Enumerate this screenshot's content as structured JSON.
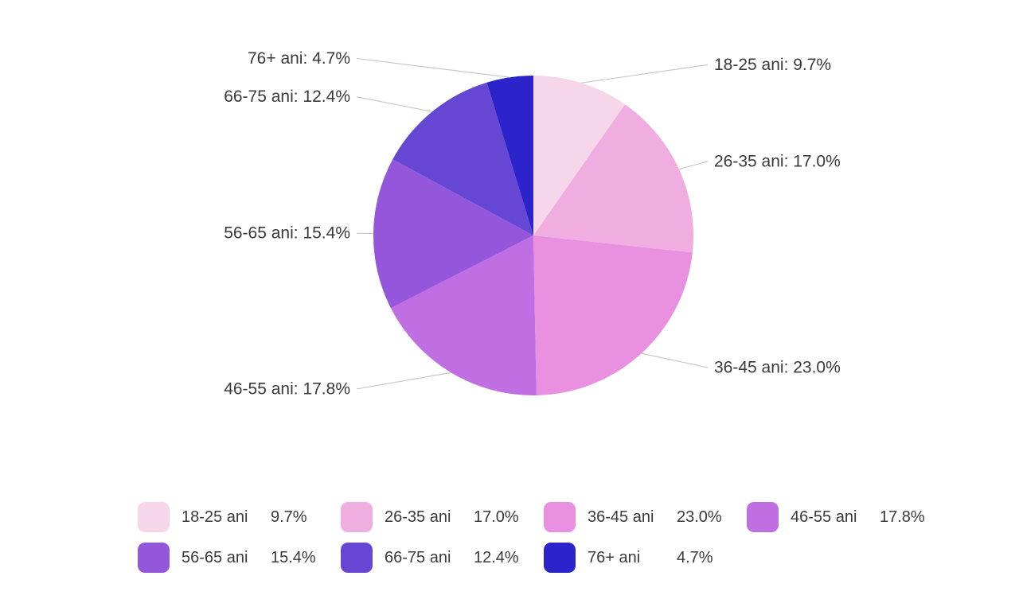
{
  "chart_data": {
    "type": "pie",
    "title": "",
    "labels": [
      "18-25 ani",
      "26-35 ani",
      "36-45 ani",
      "46-55 ani",
      "56-65 ani",
      "66-75 ani",
      "76+ ani"
    ],
    "values": [
      9.7,
      17.0,
      23.0,
      17.8,
      15.4,
      12.4,
      4.7
    ],
    "display_values": [
      "9.7%",
      "17.0%",
      "23.0%",
      "17.8%",
      "15.4%",
      "12.4%",
      "4.7%"
    ],
    "colors": [
      "#f6d7ea",
      "#f0aee0",
      "#ea90e0",
      "#c06fe2",
      "#9457db",
      "#6647d3",
      "#2c23ca"
    ],
    "callout_format": "{label}: {value}",
    "start_angle_deg": 0,
    "direction": "clockwise",
    "legend_position": "bottom",
    "grid": false,
    "leader_line_color": "#c9c9c9",
    "text_color": "#3a3a3a"
  }
}
